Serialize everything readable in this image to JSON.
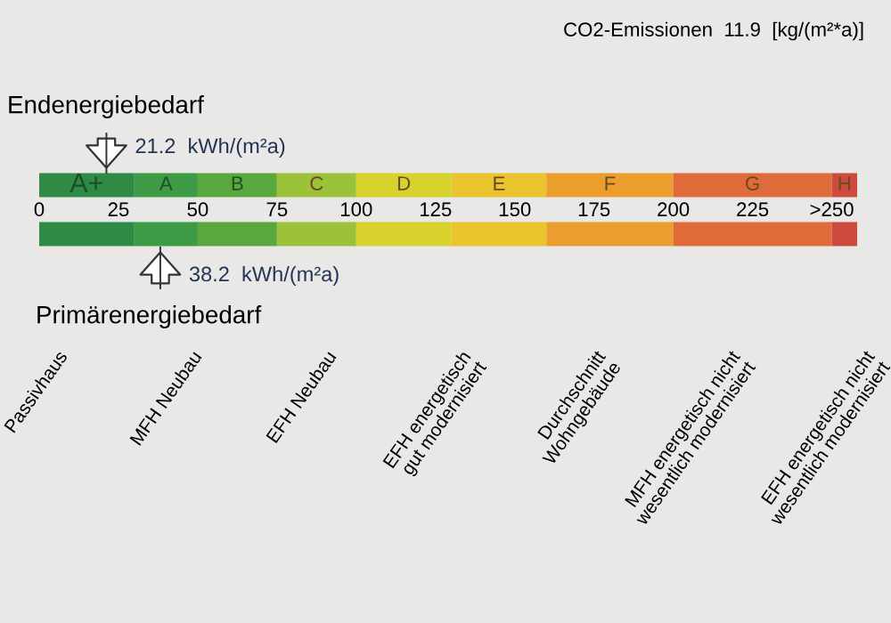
{
  "chart_data": {
    "type": "bar",
    "orientation": "horizontal",
    "stacked": true,
    "categories": [
      null,
      null
    ],
    "series": [
      {
        "name": "A+",
        "color": "#2f8a45",
        "values": [
          30,
          30
        ]
      },
      {
        "name": "A",
        "color": "#3d9a45",
        "values": [
          20,
          20
        ]
      },
      {
        "name": "B",
        "color": "#5aa73e",
        "values": [
          25,
          25
        ]
      },
      {
        "name": "C",
        "color": "#9cc23a",
        "values": [
          25,
          25
        ]
      },
      {
        "name": "D",
        "color": "#d8d22c",
        "values": [
          30,
          30
        ]
      },
      {
        "name": "E",
        "color": "#e9c42c",
        "values": [
          30,
          30
        ]
      },
      {
        "name": "F",
        "color": "#eb9d2e",
        "values": [
          40,
          40
        ]
      },
      {
        "name": "G",
        "color": "#df6a3a",
        "values": [
          50,
          50
        ]
      },
      {
        "name": "H",
        "color": "#cf4a3e",
        "values": [
          8,
          8
        ]
      }
    ],
    "annotations": [
      "CO2-Emissionen  11.9  [kg/(m²*a)]",
      "Endenergiebedarf",
      "Primärenergiebedarf",
      "Passivhaus",
      "MFH Neubau",
      "EFH Neubau",
      "EFH energetisch\ngut modernisiert",
      "Durchschnitt\nWohngebäude",
      "MFH energetisch nicht\nwesentlich modernisiert",
      "EFH energetisch nicht\nwesentlich modernisiert"
    ],
    "ref_lines": [
      {
        "axis": "x",
        "value": 21.2,
        "label": "21.2  kWh/(m²a)"
      },
      {
        "axis": "x",
        "value": 38.2,
        "label": "38.2  kWh/(m²a)"
      }
    ],
    "xlim": [
      0,
      258
    ],
    "xticks": [
      0,
      25,
      50,
      75,
      100,
      125,
      150,
      175,
      200,
      225,
      {
        "value": 250,
        "label": ">250"
      }
    ]
  }
}
